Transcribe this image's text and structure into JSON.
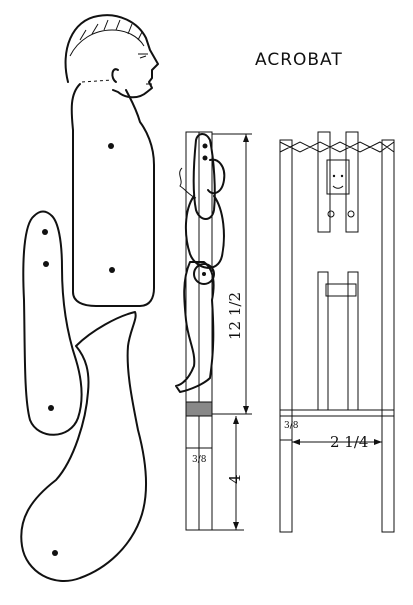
{
  "title": "ACROBAT",
  "front_view": {
    "height_total": "12 1/2",
    "height_lower": "4",
    "stick_width": "3/8"
  },
  "side_view": {
    "stick_width": "3/8",
    "spacing": "2 1/4"
  }
}
